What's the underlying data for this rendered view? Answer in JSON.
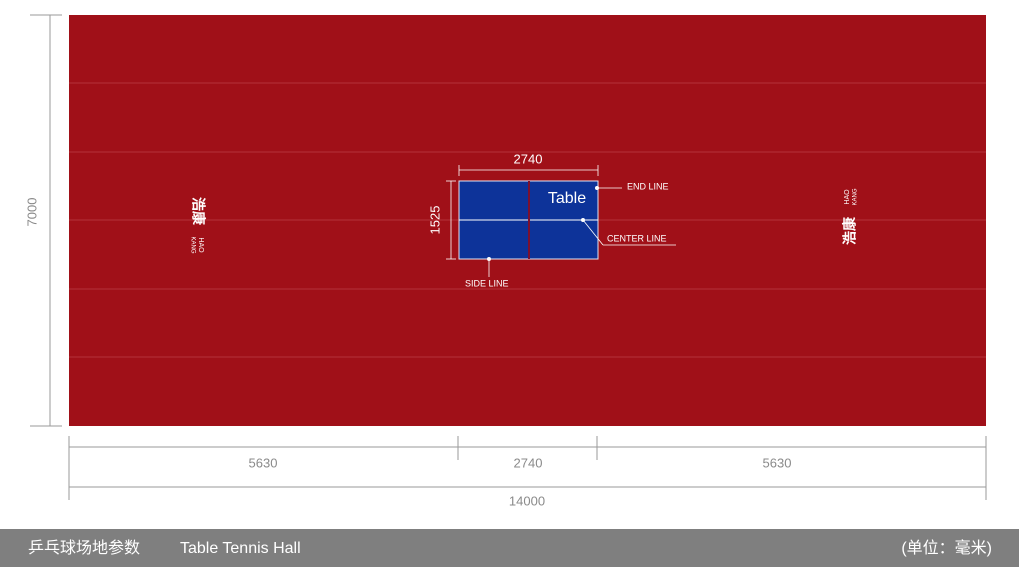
{
  "court": {
    "height": 7000
  },
  "table": {
    "label": "Table",
    "length": 2740,
    "width": 1525,
    "end_line": "END LINE",
    "center_line": "CENTER LINE",
    "side_line": "SIDE LINE"
  },
  "bottom_dims": {
    "left": 5630,
    "middle": 2740,
    "right": 5630,
    "total": 14000
  },
  "logo": {
    "cn": "浩康",
    "en_top": "HAO",
    "en_bottom": "KANG"
  },
  "footer": {
    "title": "乒乓球场地参数",
    "title_en": "Table Tennis Hall",
    "unit": "(单位：毫米)"
  }
}
